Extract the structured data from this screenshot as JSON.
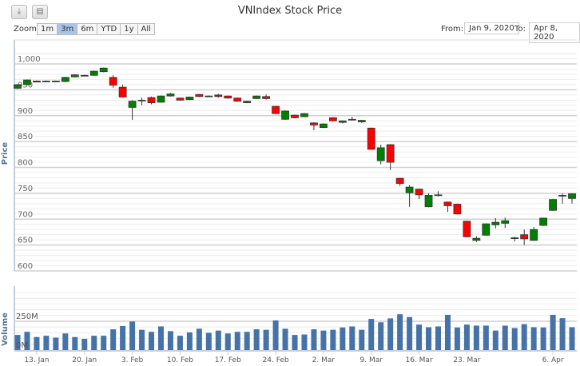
{
  "toolbar": {
    "download_icon": "download-icon",
    "print_icon": "print-icon",
    "zoom_label": "Zoom",
    "ranges": [
      "1m",
      "3m",
      "6m",
      "YTD",
      "1y",
      "All"
    ],
    "selected_range": "3m",
    "from_label": "From:",
    "from_value": "Jan 9, 2020",
    "to_label": "To:",
    "to_value": "Apr 8, 2020"
  },
  "colors": {
    "up": "#008000",
    "down": "#ff0000",
    "volume": "#4572a7",
    "axis_title": "#4d759e"
  },
  "chart_data": {
    "type": "candlestick",
    "title": "VNIndex Stock Price",
    "ylabel": "Price",
    "ylim": [
      600,
      1020
    ],
    "yticks": [
      600,
      650,
      700,
      750,
      800,
      850,
      900,
      950,
      1000
    ],
    "ytick_labels": [
      "600",
      "650",
      "700",
      "750",
      "800",
      "850",
      "900",
      "950",
      "1,000"
    ],
    "volume_label": "Volume",
    "volume_ylim": [
      0,
      500
    ],
    "volume_ticks": [
      0,
      250
    ],
    "volume_tick_labels": [
      "0M",
      "250M"
    ],
    "xticks": [
      {
        "label": "13. Jan",
        "index": 2
      },
      {
        "label": "20. Jan",
        "index": 7
      },
      {
        "label": "3. Feb",
        "index": 12
      },
      {
        "label": "10. Feb",
        "index": 17
      },
      {
        "label": "17. Feb",
        "index": 22
      },
      {
        "label": "24. Feb",
        "index": 27
      },
      {
        "label": "2. Mar",
        "index": 32
      },
      {
        "label": "9. Mar",
        "index": 37
      },
      {
        "label": "16. Mar",
        "index": 42
      },
      {
        "label": "23. Mar",
        "index": 47
      },
      {
        "label": "6. Apr",
        "index": 56
      }
    ],
    "ohlc": [
      [
        953,
        961,
        952,
        960
      ],
      [
        960,
        970,
        959,
        969
      ],
      [
        967,
        968,
        965,
        965
      ],
      [
        966,
        968,
        965,
        967
      ],
      [
        967,
        968,
        966,
        967
      ],
      [
        966,
        975,
        965,
        974
      ],
      [
        975,
        980,
        974,
        979
      ],
      [
        978,
        979,
        977,
        978
      ],
      [
        978,
        987,
        977,
        986
      ],
      [
        985,
        993,
        984,
        992
      ],
      [
        974,
        978,
        954,
        959
      ],
      [
        955,
        960,
        935,
        936
      ],
      [
        916,
        930,
        892,
        928
      ],
      [
        930,
        935,
        920,
        930
      ],
      [
        935,
        937,
        922,
        925
      ],
      [
        926,
        939,
        925,
        938
      ],
      [
        938,
        944,
        937,
        942
      ],
      [
        934,
        935,
        929,
        930
      ],
      [
        931,
        937,
        930,
        936
      ],
      [
        941,
        942,
        936,
        937
      ],
      [
        937,
        939,
        936,
        938
      ],
      [
        940,
        942,
        935,
        937
      ],
      [
        938,
        939,
        933,
        934
      ],
      [
        934,
        935,
        927,
        928
      ],
      [
        925,
        929,
        924,
        928
      ],
      [
        933,
        939,
        932,
        938
      ],
      [
        937,
        941,
        931,
        933
      ],
      [
        918,
        919,
        903,
        904
      ],
      [
        893,
        910,
        892,
        909
      ],
      [
        901,
        902,
        895,
        896
      ],
      [
        898,
        905,
        897,
        904
      ],
      [
        886,
        887,
        872,
        882
      ],
      [
        877,
        885,
        876,
        884
      ],
      [
        896,
        897,
        889,
        890
      ],
      [
        887,
        891,
        885,
        890
      ],
      [
        893,
        898,
        891,
        893
      ],
      [
        888,
        892,
        886,
        891
      ],
      [
        876,
        877,
        834,
        835
      ],
      [
        813,
        844,
        806,
        838
      ],
      [
        844,
        845,
        795,
        810
      ],
      [
        779,
        780,
        764,
        769
      ],
      [
        751,
        766,
        724,
        762
      ],
      [
        758,
        759,
        739,
        747
      ],
      [
        724,
        750,
        723,
        746
      ],
      [
        747,
        754,
        744,
        747
      ],
      [
        733,
        734,
        714,
        726
      ],
      [
        729,
        730,
        709,
        710
      ],
      [
        696,
        697,
        665,
        666
      ],
      [
        659,
        667,
        656,
        663
      ],
      [
        669,
        692,
        668,
        691
      ],
      [
        689,
        702,
        682,
        694
      ],
      [
        692,
        703,
        683,
        697
      ],
      [
        664,
        666,
        657,
        664
      ],
      [
        670,
        680,
        650,
        662
      ],
      [
        659,
        685,
        658,
        680
      ],
      [
        688,
        703,
        687,
        702
      ],
      [
        717,
        739,
        716,
        738
      ],
      [
        746,
        750,
        730,
        746
      ],
      [
        740,
        750,
        730,
        749
      ]
    ],
    "volume_m": [
      131,
      158,
      113,
      124,
      108,
      144,
      113,
      97,
      124,
      124,
      180,
      209,
      248,
      176,
      158,
      205,
      164,
      124,
      153,
      185,
      149,
      169,
      144,
      158,
      158,
      180,
      176,
      257,
      185,
      131,
      135,
      180,
      169,
      176,
      196,
      205,
      176,
      270,
      241,
      275,
      311,
      286,
      221,
      198,
      205,
      306,
      196,
      221,
      212,
      212,
      169,
      212,
      191,
      225,
      198,
      196,
      306,
      277,
      198
    ]
  }
}
